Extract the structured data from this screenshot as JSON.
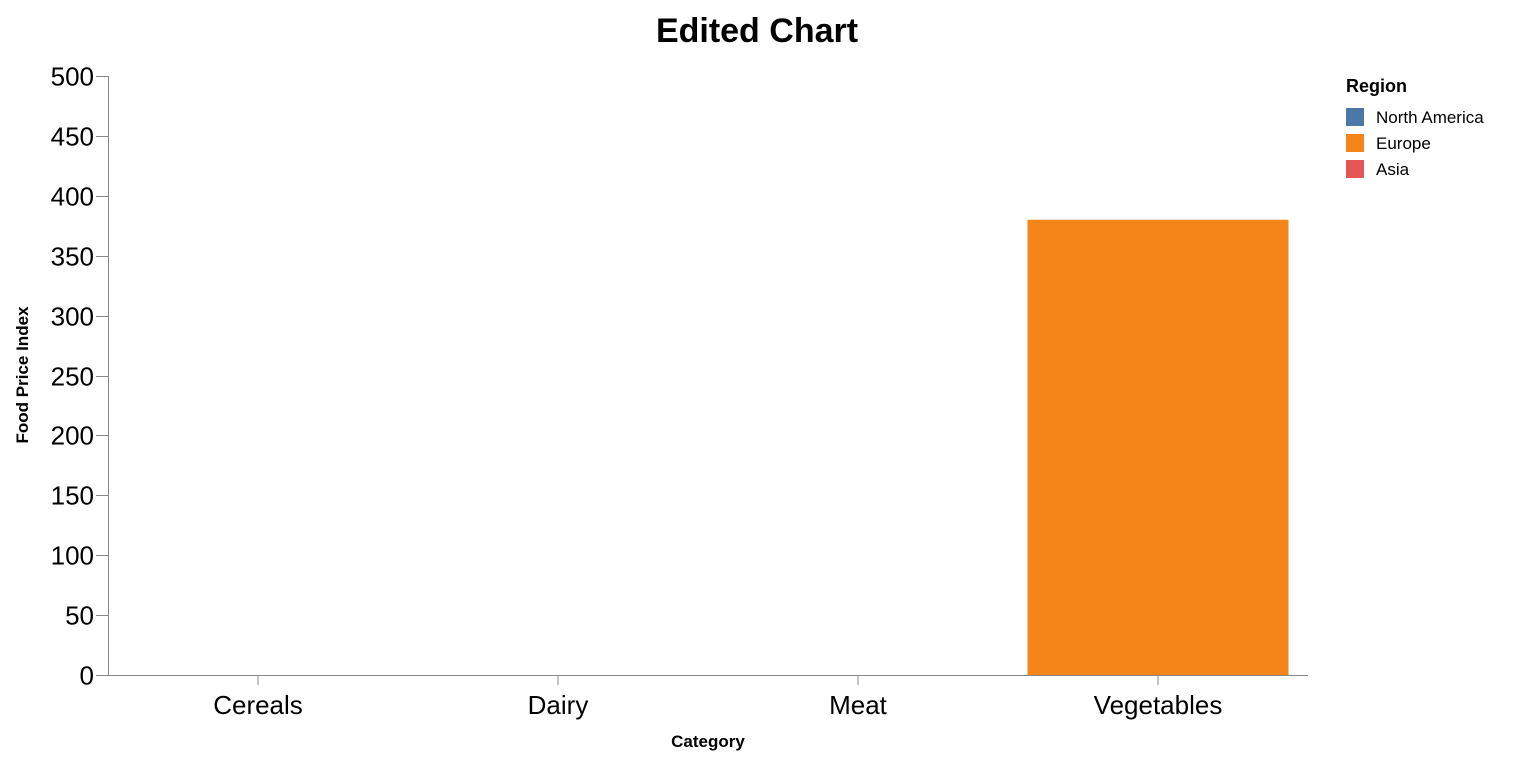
{
  "chart_data": {
    "type": "bar",
    "title": "Edited Chart",
    "xlabel": "Category",
    "ylabel": "Food Price Index",
    "categories": [
      "Cereals",
      "Dairy",
      "Meat",
      "Vegetables"
    ],
    "ylim": [
      0,
      500
    ],
    "yticks": [
      0,
      50,
      100,
      150,
      200,
      250,
      300,
      350,
      400,
      450,
      500
    ],
    "grid": false,
    "legend": {
      "title": "Region",
      "placement": "top-right",
      "entries": [
        {
          "name": "North America",
          "color": "#4c78a8"
        },
        {
          "name": "Europe",
          "color": "#f58518"
        },
        {
          "name": "Asia",
          "color": "#e45756"
        }
      ]
    },
    "series": [
      {
        "name": "North America",
        "color": "#4c78a8",
        "values": [
          0,
          0,
          0,
          0
        ]
      },
      {
        "name": "Europe",
        "color": "#f58518",
        "values": [
          0,
          0,
          0,
          380
        ]
      },
      {
        "name": "Asia",
        "color": "#e45756",
        "values": [
          0,
          0,
          0,
          0
        ]
      }
    ]
  }
}
